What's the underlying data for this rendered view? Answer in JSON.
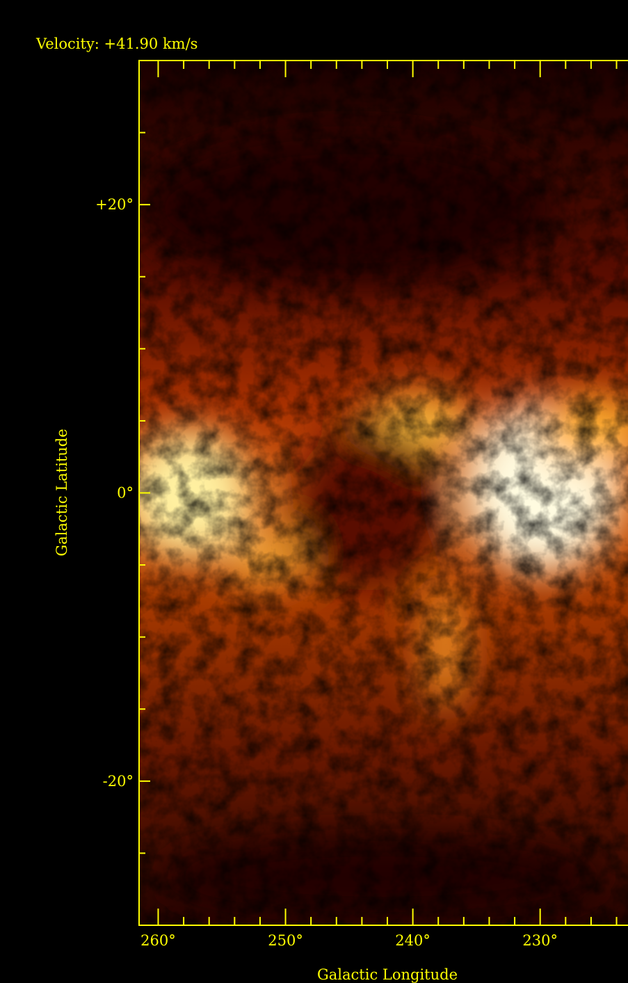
{
  "chart_data": {
    "type": "image",
    "title": "Velocity: +41.90 km/s",
    "x_label": "Galactic Longitude",
    "y_label": "Galactic Latitude",
    "xlim": [
      261.5,
      223.1
    ],
    "ylim": [
      -30,
      30
    ],
    "xticks": [
      {
        "value": 260,
        "label": "260°"
      },
      {
        "value": 250,
        "label": "250°"
      },
      {
        "value": 240,
        "label": "240°"
      },
      {
        "value": 230,
        "label": "230°"
      }
    ],
    "yticks": [
      {
        "value": 20,
        "label": "+20°"
      },
      {
        "value": 0,
        "label": "0°"
      },
      {
        "value": -20,
        "label": "-20°"
      }
    ],
    "xticks_minor": [
      258,
      256,
      254,
      252,
      248,
      246,
      244,
      242,
      238,
      236,
      234,
      232,
      228,
      226,
      224
    ],
    "yticks_minor": [
      25,
      15,
      10,
      5,
      -5,
      -10,
      -15,
      -25
    ],
    "color": "#ffff00"
  }
}
